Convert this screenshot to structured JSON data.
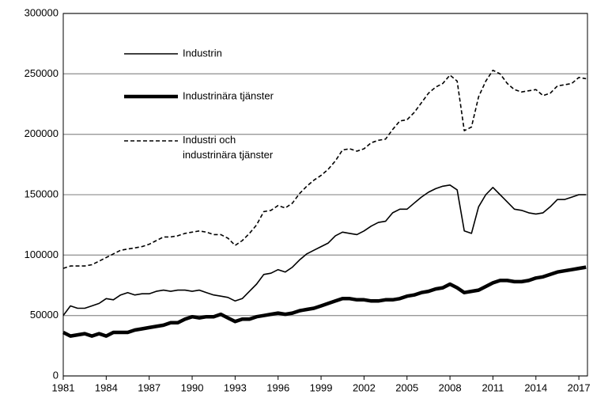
{
  "chart_data": {
    "type": "line",
    "x": [
      1981,
      1981.5,
      1982,
      1982.5,
      1983,
      1983.5,
      1984,
      1984.5,
      1985,
      1985.5,
      1986,
      1986.5,
      1987,
      1987.5,
      1988,
      1988.5,
      1989,
      1989.5,
      1990,
      1990.5,
      1991,
      1991.5,
      1992,
      1992.5,
      1993,
      1993.5,
      1994,
      1994.5,
      1995,
      1995.5,
      1996,
      1996.5,
      1997,
      1997.5,
      1998,
      1998.5,
      1999,
      1999.5,
      2000,
      2000.5,
      2001,
      2001.5,
      2002,
      2002.5,
      2003,
      2003.5,
      2004,
      2004.5,
      2005,
      2005.5,
      2006,
      2006.5,
      2007,
      2007.5,
      2008,
      2008.5,
      2009,
      2009.5,
      2010,
      2010.5,
      2011,
      2011.5,
      2012,
      2012.5,
      2013,
      2013.5,
      2014,
      2014.5,
      2015,
      2015.5,
      2016,
      2016.5,
      2017,
      2017.5
    ],
    "series": [
      {
        "name": "Industrin",
        "color": "#000000",
        "width": 1.6,
        "dash": false,
        "values": [
          50000,
          58000,
          56000,
          56000,
          58000,
          60000,
          64000,
          63000,
          67000,
          69000,
          67000,
          68000,
          68000,
          70000,
          71000,
          70000,
          71000,
          71000,
          70000,
          71000,
          69000,
          67000,
          66000,
          65000,
          62000,
          64000,
          70000,
          76000,
          84000,
          85000,
          88000,
          86000,
          90000,
          96000,
          101000,
          104000,
          107000,
          110000,
          116000,
          119000,
          118000,
          117000,
          120000,
          124000,
          127000,
          128000,
          135000,
          138000,
          138000,
          143000,
          148000,
          152000,
          155000,
          157000,
          158000,
          154000,
          120000,
          118000,
          140000,
          150000,
          156000,
          150000,
          144000,
          138000,
          137000,
          135000,
          134000,
          135000,
          140000,
          146000,
          146000,
          148000,
          150000,
          150000
        ]
      },
      {
        "name": "Industrinära tjänster",
        "color": "#000000",
        "width": 4.5,
        "dash": false,
        "values": [
          36000,
          33000,
          34000,
          35000,
          33000,
          35000,
          33000,
          36000,
          36000,
          36000,
          38000,
          39000,
          40000,
          41000,
          42000,
          44000,
          44000,
          47000,
          49000,
          48000,
          49000,
          49000,
          51000,
          48000,
          45000,
          47000,
          47000,
          49000,
          50000,
          51000,
          52000,
          51000,
          52000,
          54000,
          55000,
          56000,
          58000,
          60000,
          62000,
          64000,
          64000,
          63000,
          63000,
          62000,
          62000,
          63000,
          63000,
          64000,
          66000,
          67000,
          69000,
          70000,
          72000,
          73000,
          76000,
          73000,
          69000,
          70000,
          71000,
          74000,
          77000,
          79000,
          79000,
          78000,
          78000,
          79000,
          81000,
          82000,
          84000,
          86000,
          87000,
          88000,
          89000,
          90000
        ]
      },
      {
        "name": "Industri och\nindustrinära tjänster",
        "color": "#000000",
        "width": 1.6,
        "dash": true,
        "values": [
          89000,
          91000,
          91000,
          91000,
          92000,
          95000,
          98000,
          101000,
          104000,
          105000,
          106000,
          107000,
          109000,
          112000,
          115000,
          115000,
          116000,
          118000,
          119000,
          120000,
          119000,
          117000,
          117000,
          114000,
          108000,
          112000,
          118000,
          125000,
          136000,
          137000,
          141000,
          139000,
          143000,
          151000,
          157000,
          162000,
          166000,
          171000,
          178000,
          187000,
          188000,
          186000,
          188000,
          193000,
          195000,
          196000,
          204000,
          211000,
          212000,
          218000,
          226000,
          234000,
          239000,
          242000,
          249000,
          244000,
          203000,
          206000,
          231000,
          244000,
          253000,
          250000,
          242000,
          237000,
          235000,
          236000,
          237000,
          232000,
          234000,
          240000,
          241000,
          242000,
          247000,
          246000
        ]
      }
    ],
    "xlim": [
      1981,
      2017.6
    ],
    "xticks": [
      1981,
      1984,
      1987,
      1990,
      1993,
      1996,
      1999,
      2002,
      2005,
      2008,
      2011,
      2014,
      2017
    ],
    "ylim": [
      0,
      300000
    ],
    "yticks": [
      0,
      50000,
      100000,
      150000,
      200000,
      250000,
      300000
    ],
    "grid": true
  }
}
